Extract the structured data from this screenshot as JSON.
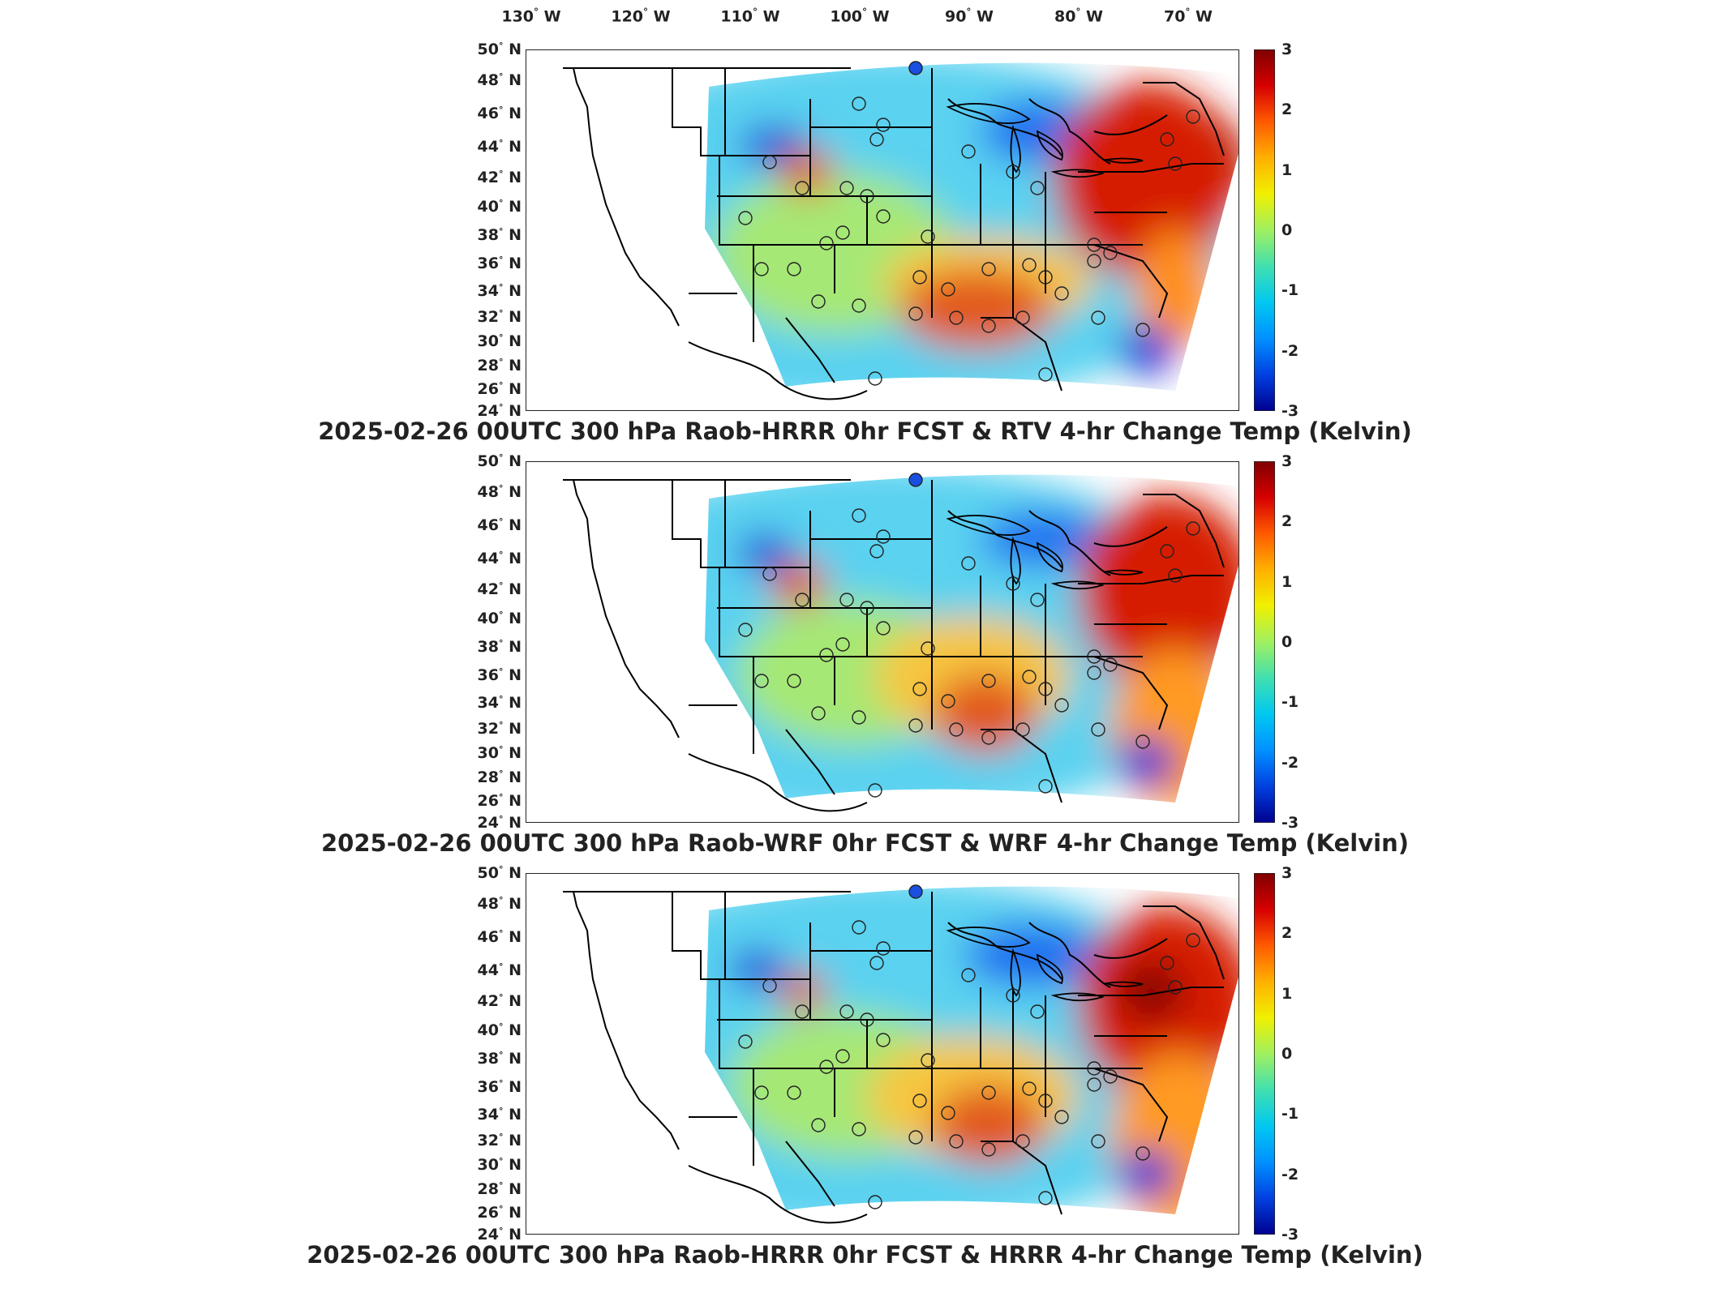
{
  "longitude_labels": [
    {
      "deg": "130",
      "hemi": "W"
    },
    {
      "deg": "120",
      "hemi": "W"
    },
    {
      "deg": "110",
      "hemi": "W"
    },
    {
      "deg": "100",
      "hemi": "W"
    },
    {
      "deg": "90",
      "hemi": "W"
    },
    {
      "deg": "80",
      "hemi": "W"
    },
    {
      "deg": "70",
      "hemi": "W"
    }
  ],
  "latitude_labels": [
    {
      "deg": "50",
      "hemi": "N"
    },
    {
      "deg": "48",
      "hemi": "N"
    },
    {
      "deg": "46",
      "hemi": "N"
    },
    {
      "deg": "44",
      "hemi": "N"
    },
    {
      "deg": "42",
      "hemi": "N"
    },
    {
      "deg": "40",
      "hemi": "N"
    },
    {
      "deg": "38",
      "hemi": "N"
    },
    {
      "deg": "36",
      "hemi": "N"
    },
    {
      "deg": "34",
      "hemi": "N"
    },
    {
      "deg": "32",
      "hemi": "N"
    },
    {
      "deg": "30",
      "hemi": "N"
    },
    {
      "deg": "28",
      "hemi": "N"
    },
    {
      "deg": "26",
      "hemi": "N"
    },
    {
      "deg": "24",
      "hemi": "N"
    }
  ],
  "colorbar": {
    "ticks": [
      "3",
      "2",
      "1",
      "0",
      "-1",
      "-2",
      "-3"
    ],
    "colors": [
      "#7f0000",
      "#d60000",
      "#ff5a00",
      "#ffb000",
      "#f0f000",
      "#a0f060",
      "#40e0b0",
      "#00c8f0",
      "#0090ff",
      "#0040e0",
      "#00008f"
    ]
  },
  "panels": [
    {
      "title": "2025-02-26 00UTC 300 hPa Raob-HRRR 0hr FCST & RTV 4-hr Change Temp (Kelvin)",
      "model": "RTV"
    },
    {
      "title": "2025-02-26 00UTC 300 hPa Raob-WRF 0hr FCST & WRF 4-hr Change Temp (Kelvin)",
      "model": "WRF"
    },
    {
      "title": "2025-02-26 00UTC 300 hPa Raob-HRRR 0hr FCST & HRRR 4-hr Change Temp (Kelvin)",
      "model": "HRRR"
    }
  ]
}
